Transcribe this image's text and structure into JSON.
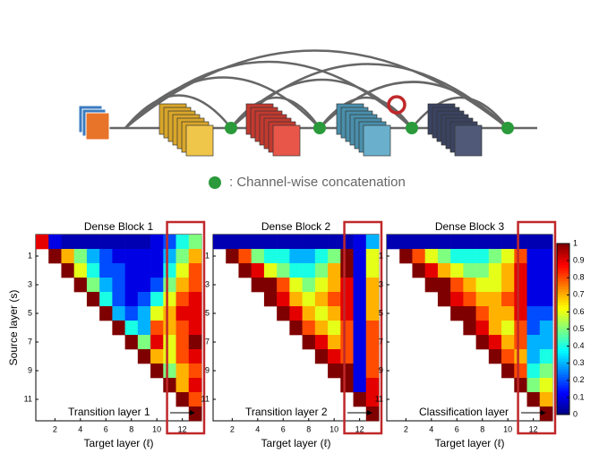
{
  "diagram": {
    "legend": ": Channel-wise concatenation"
  },
  "chart_data": [
    {
      "type": "heatmap",
      "title": "Dense Block 1",
      "x_label": "Target layer (ℓ)",
      "y_label": "Source layer (s)",
      "annotation": "Transition layer 1",
      "xticks": [
        2,
        4,
        6,
        8,
        10,
        12
      ],
      "yticks": [
        1,
        3,
        5,
        7,
        9,
        11
      ],
      "rows": [
        [
          0.9,
          0.1,
          0.05,
          0.05,
          0.05,
          0.05,
          0.05,
          0.05,
          0.05,
          0.1,
          0.2,
          0.4,
          0.5
        ],
        [
          1,
          0.7,
          0.5,
          0.3,
          0.2,
          0.1,
          0.1,
          0.1,
          0.1,
          0.3,
          0.5,
          0.7
        ],
        [
          1,
          0.6,
          0.4,
          0.2,
          0.2,
          0.1,
          0.1,
          0.1,
          0.4,
          0.6,
          0.8
        ],
        [
          1,
          0.5,
          0.3,
          0.2,
          0.1,
          0.1,
          0.2,
          0.5,
          0.7,
          0.8
        ],
        [
          1,
          0.4,
          0.2,
          0.1,
          0.2,
          0.4,
          0.6,
          0.8,
          0.9
        ],
        [
          1,
          0.3,
          0.2,
          0.3,
          0.6,
          0.7,
          0.9,
          0.9
        ],
        [
          1,
          0.4,
          0.3,
          0.8,
          0.7,
          0.8,
          0.9
        ],
        [
          1,
          0.5,
          0.9,
          0.6,
          0.8,
          1
        ],
        [
          1,
          0.7,
          0.6,
          0.8,
          0.9
        ],
        [
          1,
          0.5,
          0.7,
          0.8
        ],
        [
          1,
          0.7,
          0.9
        ],
        [
          1,
          0.8
        ],
        [
          1
        ]
      ]
    },
    {
      "type": "heatmap",
      "title": "Dense Block 2",
      "x_label": "Target layer (ℓ)",
      "annotation": "Transition layer 2",
      "xticks": [
        2,
        4,
        6,
        8,
        10,
        12
      ],
      "yticks": [
        1,
        3,
        5,
        7,
        9,
        11
      ],
      "rows": [
        [
          0.05,
          0.05,
          0.05,
          0.05,
          0.05,
          0.05,
          0.05,
          0.05,
          0.05,
          0.05,
          0.05,
          0.1,
          0.3
        ],
        [
          1,
          0.8,
          0.5,
          0.4,
          0.4,
          0.3,
          0.3,
          0.4,
          0.5,
          1,
          0.1,
          0.6
        ],
        [
          1,
          0.9,
          0.6,
          0.5,
          0.4,
          0.4,
          0.5,
          0.7,
          1,
          0.1,
          0.6
        ],
        [
          1,
          1,
          0.8,
          0.6,
          0.5,
          0.6,
          0.7,
          0.9,
          0.1,
          0.7
        ],
        [
          1,
          0.9,
          0.7,
          0.6,
          0.7,
          0.8,
          0.9,
          0.1,
          0.7
        ],
        [
          1,
          0.9,
          0.7,
          0.6,
          0.7,
          0.9,
          0.1,
          0.7
        ],
        [
          1,
          0.8,
          0.7,
          0.6,
          0.8,
          0.1,
          0.8
        ],
        [
          1,
          0.9,
          0.7,
          0.8,
          0.1,
          0.8
        ],
        [
          1,
          0.9,
          0.8,
          0.1,
          0.8
        ],
        [
          1,
          1,
          0.1,
          0.8
        ],
        [
          1,
          0.1,
          0.9
        ],
        [
          1,
          0.9
        ],
        [
          1
        ]
      ]
    },
    {
      "type": "heatmap",
      "title": "Dense Block 3",
      "x_label": "Target layer (ℓ)",
      "annotation": "Classification layer",
      "xticks": [
        2,
        4,
        6,
        8,
        10,
        12
      ],
      "yticks": [
        1,
        3,
        5,
        7,
        9,
        11
      ],
      "rows": [
        [
          0.05,
          0.05,
          0.05,
          0.05,
          0.05,
          0.05,
          0.05,
          0.05,
          0.05,
          0.05,
          0.05,
          0.05,
          0.05
        ],
        [
          1,
          0.8,
          0.6,
          0.5,
          0.4,
          0.4,
          0.4,
          0.5,
          0.6,
          0.8,
          0.1,
          0.1
        ],
        [
          1,
          0.9,
          0.7,
          0.6,
          0.5,
          0.5,
          0.6,
          0.7,
          0.9,
          0.1,
          0.1
        ],
        [
          1,
          1,
          0.8,
          0.7,
          0.6,
          0.6,
          0.7,
          0.9,
          0.1,
          0.1
        ],
        [
          1,
          0.9,
          0.8,
          0.7,
          0.7,
          0.8,
          0.9,
          0.1,
          0.1
        ],
        [
          1,
          1,
          0.8,
          0.7,
          0.7,
          0.9,
          0.2,
          0.2
        ],
        [
          1,
          0.9,
          0.7,
          0.6,
          0.8,
          0.2,
          0.3
        ],
        [
          1,
          0.9,
          0.7,
          0.8,
          0.3,
          0.3
        ],
        [
          1,
          0.8,
          0.7,
          0.3,
          0.4
        ],
        [
          1,
          0.8,
          0.4,
          0.5
        ],
        [
          1,
          0.5,
          0.6
        ],
        [
          1,
          0.7
        ],
        [
          1
        ]
      ]
    }
  ],
  "colorbar": {
    "lim": [
      0,
      1
    ],
    "ticks": [
      0,
      0.1,
      0.2,
      0.3,
      0.4,
      0.5,
      0.6,
      0.7,
      0.8,
      0.9,
      1
    ]
  }
}
